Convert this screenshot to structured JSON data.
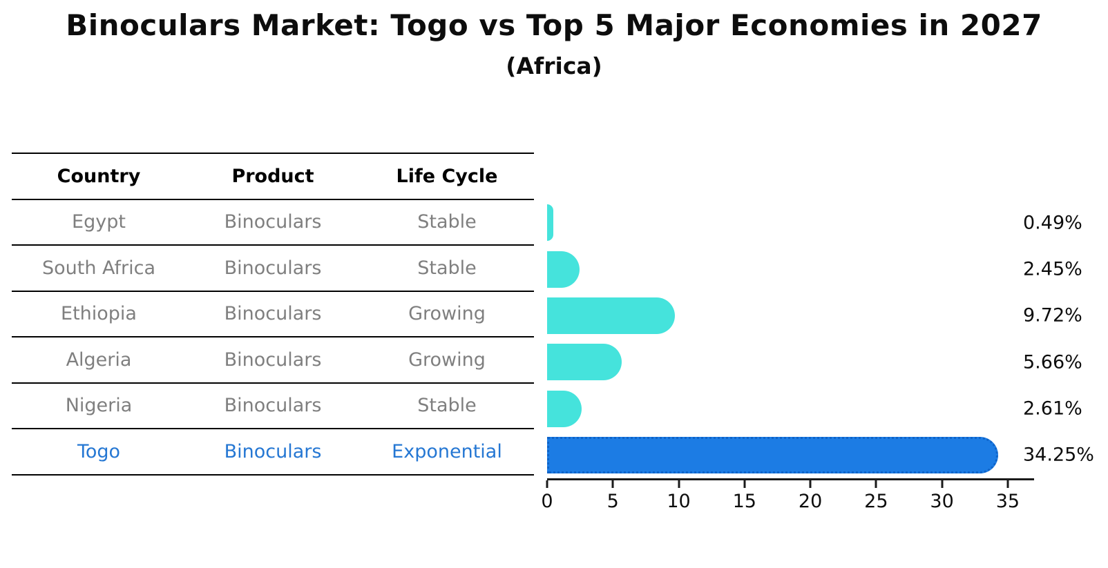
{
  "title": "Binoculars Market: Togo vs Top 5 Major Economies in 2027",
  "subtitle": "(Africa)",
  "table": {
    "headers": [
      "Country",
      "Product",
      "Life Cycle"
    ],
    "rows": [
      {
        "country": "Egypt",
        "product": "Binoculars",
        "life_cycle": "Stable",
        "highlight": false
      },
      {
        "country": "South Africa",
        "product": "Binoculars",
        "life_cycle": "Stable",
        "highlight": false
      },
      {
        "country": "Ethiopia",
        "product": "Binoculars",
        "life_cycle": "Growing",
        "highlight": false
      },
      {
        "country": "Algeria",
        "product": "Binoculars",
        "life_cycle": "Growing",
        "highlight": false
      },
      {
        "country": "Nigeria",
        "product": "Binoculars",
        "life_cycle": "Stable",
        "highlight": false
      },
      {
        "country": "Togo",
        "product": "Binoculars",
        "life_cycle": "Exponential",
        "highlight": true
      }
    ]
  },
  "chart_data": {
    "type": "bar",
    "orientation": "horizontal",
    "title": "Binoculars Market: Togo vs Top 5 Major Economies in 2027 (Africa)",
    "categories": [
      "Egypt",
      "South Africa",
      "Ethiopia",
      "Algeria",
      "Nigeria",
      "Togo"
    ],
    "values": [
      0.49,
      2.45,
      9.72,
      5.66,
      2.61,
      34.25
    ],
    "value_labels": [
      "0.49%",
      "2.45%",
      "9.72%",
      "5.66%",
      "2.61%",
      "34.25%"
    ],
    "x_ticks": [
      "0",
      "5",
      "10",
      "15",
      "20",
      "25",
      "30",
      "35"
    ],
    "x_tick_values": [
      0,
      5,
      10,
      15,
      20,
      25,
      30,
      35
    ],
    "xlim": [
      0,
      37
    ],
    "grid": false,
    "legend": "none",
    "highlight_index": 5
  },
  "colors": {
    "bar_color": "#45E3DC",
    "highlight_bar_color": "#1C7CE4",
    "highlight_border_color": "#0E63C8",
    "highlight_text_color": "#2577D3",
    "table_text_color": "#7f7f7f",
    "axis_color": "#1a1a1a"
  }
}
